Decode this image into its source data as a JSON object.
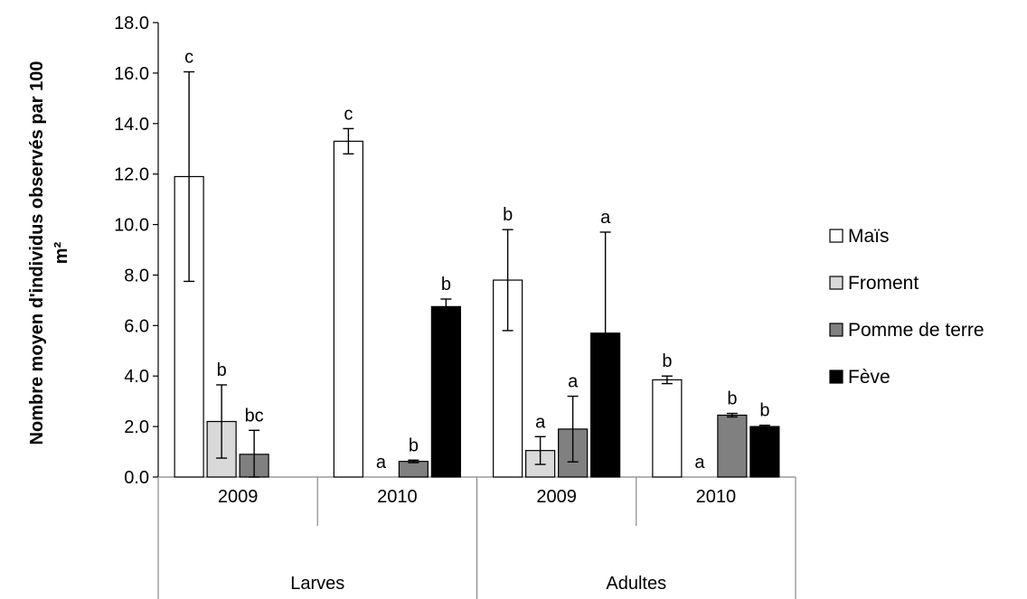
{
  "chart_data": {
    "type": "bar",
    "ylabel_lines": [
      "Nombre moyen d'individus  observés par 100",
      "m²"
    ],
    "xlabel": "",
    "ylim": [
      0,
      18
    ],
    "y_ticks": [
      "0.0",
      "2.0",
      "4.0",
      "6.0",
      "8.0",
      "10.0",
      "12.0",
      "14.0",
      "16.0",
      "18.0"
    ],
    "grid": false,
    "legend_position": "right",
    "groups": [
      {
        "label": "Larves",
        "years": [
          "2009",
          "2010"
        ]
      },
      {
        "label": "Adultes",
        "years": [
          "2009",
          "2010"
        ]
      }
    ],
    "categories": [
      "Larves 2009",
      "Larves 2010",
      "Adultes 2009",
      "Adultes 2010"
    ],
    "series": [
      {
        "name": "Maïs",
        "color": "#ffffff",
        "values": [
          11.9,
          13.3,
          7.8,
          3.85
        ],
        "errors": [
          4.15,
          0.5,
          2.0,
          0.15
        ],
        "letters": [
          "c",
          "c",
          "b",
          "b"
        ]
      },
      {
        "name": "Froment",
        "color": "#d9d9d9",
        "values": [
          2.2,
          0,
          1.05,
          0
        ],
        "errors": [
          1.45,
          0,
          0.55,
          0
        ],
        "letters": [
          "b",
          "a",
          "a",
          "a"
        ]
      },
      {
        "name": "Pomme de terre",
        "color": "#808080",
        "values": [
          0.9,
          0.62,
          1.9,
          2.45
        ],
        "errors": [
          0.95,
          0.05,
          1.3,
          0.07
        ],
        "letters": [
          "bc",
          "b",
          "a",
          "b"
        ]
      },
      {
        "name": "Fève",
        "color": "#000000",
        "values": [
          0,
          6.75,
          5.7,
          2.0
        ],
        "errors": [
          0,
          0.3,
          4.0,
          0.05
        ],
        "letters": [
          "",
          "b",
          "a",
          "b"
        ]
      }
    ]
  }
}
